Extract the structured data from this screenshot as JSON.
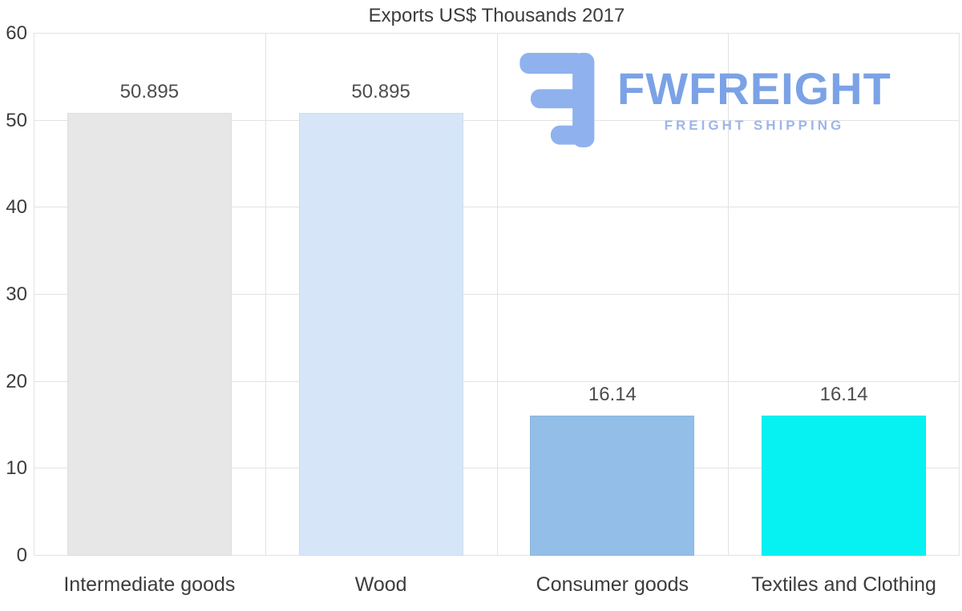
{
  "chart_data": {
    "type": "bar",
    "title": "Exports US$ Thousands 2017",
    "categories": [
      "Intermediate goods",
      "Wood",
      "Consumer goods",
      "Textiles and Clothing"
    ],
    "values": [
      50.895,
      50.895,
      16.14,
      16.14
    ],
    "value_labels": [
      "50.895",
      "50.895",
      "16.14",
      "16.14"
    ],
    "bar_colors": [
      "#e7e7e7",
      "#d6e6f8",
      "#92bee8",
      "#06f2f2"
    ],
    "ylim": [
      0,
      60
    ],
    "yticks": [
      0,
      10,
      20,
      30,
      40,
      50,
      60
    ],
    "grid": true,
    "legend": false,
    "xlabel": "",
    "ylabel": ""
  },
  "watermark": {
    "brand": "FWFREIGHT",
    "tagline": "FREIGHT SHIPPING",
    "brand_color": "#7ba2e6",
    "tagline_color": "#9db6ea",
    "logo_color": "#8fb2ee"
  }
}
